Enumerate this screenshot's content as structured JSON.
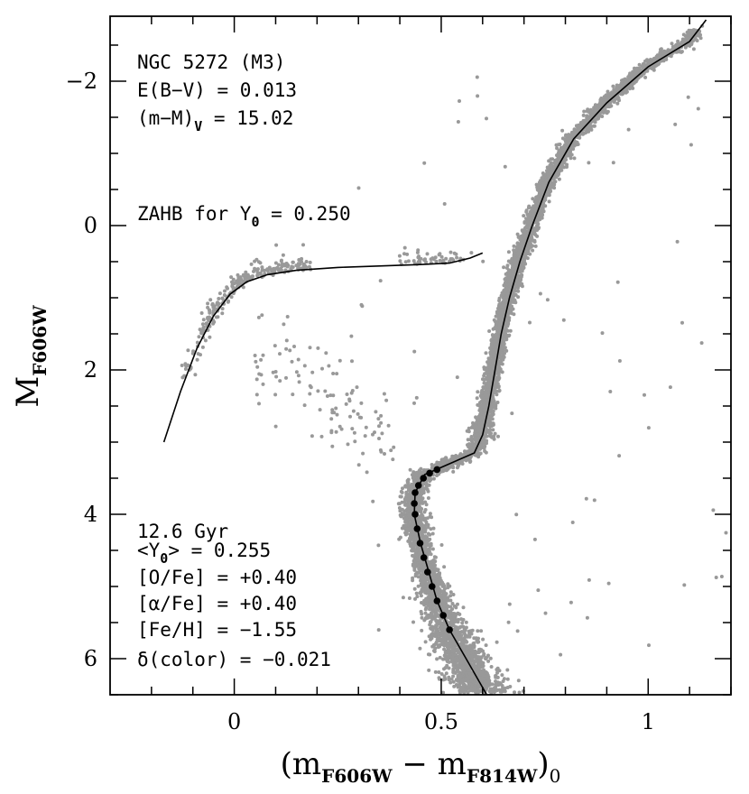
{
  "chart_data": {
    "type": "scatter",
    "xlim": [
      -0.3,
      1.2
    ],
    "ylim": [
      6.5,
      -2.9
    ],
    "x_ticks": [
      {
        "v": 0,
        "label": "0"
      },
      {
        "v": 0.5,
        "label": "0.5"
      },
      {
        "v": 1,
        "label": "1"
      }
    ],
    "y_ticks": [
      {
        "v": -2,
        "label": "−2"
      },
      {
        "v": 0,
        "label": "0"
      },
      {
        "v": 2,
        "label": "2"
      },
      {
        "v": 4,
        "label": "4"
      },
      {
        "v": 6,
        "label": "6"
      }
    ],
    "x_minor_step": 0.1,
    "y_minor_step": 0.5,
    "xlabel": {
      "open": "(m",
      "sub1": "F606W",
      "minus": " − m",
      "sub2": "F814W",
      "close": ")",
      "sub3": "0"
    },
    "ylabel": {
      "main": "M",
      "sub": "F606W"
    },
    "annotations_top": {
      "line1": "NGC 5272 (M3)",
      "line2": "E(B−V) = 0.013",
      "line3_main": "(m−M)",
      "line3_sub": "V",
      "line3_value": " = 15.02"
    },
    "zahb_label": {
      "main": "ZAHB for Y",
      "sub": "0",
      "value": " = 0.250"
    },
    "annotations_bottom": {
      "line1": "12.6 Gyr",
      "line2_main": "<Y",
      "line2_sub": "0",
      "line2_value": "> = 0.255",
      "line3": "[O/Fe] = +0.40",
      "line4": "[α/Fe] = +0.40",
      "line5": "[Fe/H] = −1.55",
      "line6_main": "δ(color) = −0.021"
    },
    "isochrone": {
      "name": "12.6 Gyr isochrone",
      "color": "#000000",
      "points": [
        [
          0.64,
          6.8
        ],
        [
          0.6,
          6.4
        ],
        [
          0.56,
          6.0
        ],
        [
          0.52,
          5.6
        ],
        [
          0.49,
          5.2
        ],
        [
          0.47,
          4.8
        ],
        [
          0.45,
          4.4
        ],
        [
          0.435,
          4.0
        ],
        [
          0.437,
          3.7
        ],
        [
          0.46,
          3.45
        ],
        [
          0.52,
          3.3
        ],
        [
          0.58,
          3.15
        ],
        [
          0.6,
          2.9
        ],
        [
          0.615,
          2.5
        ],
        [
          0.63,
          2.0
        ],
        [
          0.645,
          1.5
        ],
        [
          0.665,
          1.0
        ],
        [
          0.69,
          0.5
        ],
        [
          0.72,
          0.0
        ],
        [
          0.76,
          -0.6
        ],
        [
          0.82,
          -1.2
        ],
        [
          0.9,
          -1.7
        ],
        [
          1.0,
          -2.2
        ],
        [
          1.1,
          -2.55
        ],
        [
          1.14,
          -2.85
        ]
      ]
    },
    "isochrone_dots": {
      "color": "#000000",
      "points": [
        [
          0.52,
          5.6
        ],
        [
          0.505,
          5.4
        ],
        [
          0.49,
          5.2
        ],
        [
          0.478,
          5.0
        ],
        [
          0.467,
          4.8
        ],
        [
          0.458,
          4.6
        ],
        [
          0.449,
          4.4
        ],
        [
          0.442,
          4.2
        ],
        [
          0.437,
          4.0
        ],
        [
          0.435,
          3.85
        ],
        [
          0.437,
          3.7
        ],
        [
          0.445,
          3.6
        ],
        [
          0.457,
          3.5
        ],
        [
          0.472,
          3.43
        ],
        [
          0.49,
          3.38
        ]
      ]
    },
    "zahb": {
      "name": "ZAHB",
      "color": "#000000",
      "points": [
        [
          -0.17,
          3.0
        ],
        [
          -0.13,
          2.3
        ],
        [
          -0.09,
          1.7
        ],
        [
          -0.05,
          1.25
        ],
        [
          -0.01,
          0.95
        ],
        [
          0.03,
          0.78
        ],
        [
          0.08,
          0.68
        ],
        [
          0.15,
          0.62
        ],
        [
          0.25,
          0.58
        ],
        [
          0.35,
          0.56
        ],
        [
          0.45,
          0.54
        ],
        [
          0.52,
          0.52
        ],
        [
          0.57,
          0.45
        ],
        [
          0.6,
          0.38
        ]
      ]
    },
    "stars": {
      "name": "M3 stars",
      "color": "#999999",
      "seed": 5272
    }
  }
}
